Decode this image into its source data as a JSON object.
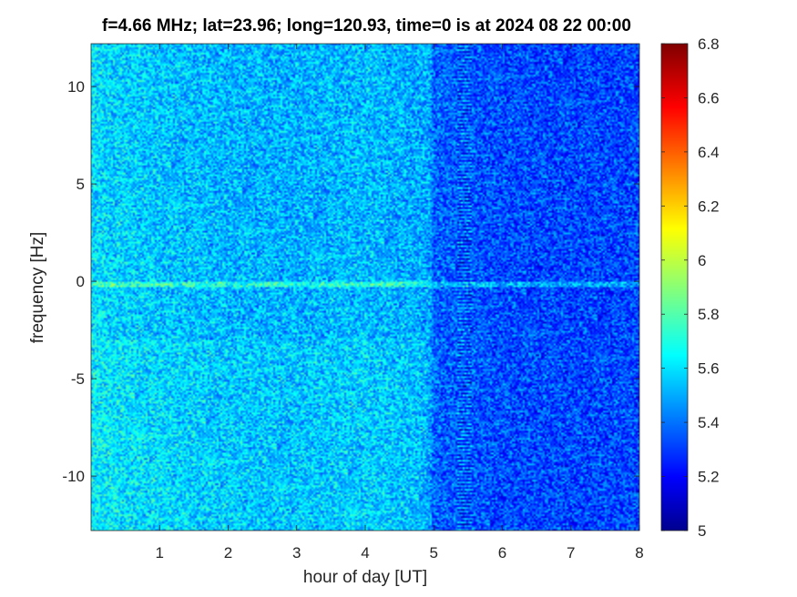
{
  "chart_data": {
    "type": "heatmap",
    "title": "f=4.66 MHz;  lat=23.96; long=120.93, time=0 is at 2024 08 22 00:00",
    "xlabel": "hour of day [UT]",
    "ylabel": "frequency [Hz]",
    "xlim": [
      0,
      8
    ],
    "ylim": [
      -12.8,
      12.2
    ],
    "xticks": [
      1,
      2,
      3,
      4,
      5,
      6,
      7,
      8
    ],
    "xtick_labels": [
      "1",
      "2",
      "3",
      "4",
      "5",
      "6",
      "7",
      "8"
    ],
    "yticks": [
      -10,
      -5,
      0,
      5,
      10
    ],
    "ytick_labels": [
      "-10",
      "-5",
      "0",
      "5",
      "10"
    ],
    "colorbar": {
      "colormap": "jet",
      "clim": [
        5,
        6.8
      ],
      "ticks": [
        5,
        5.2,
        5.4,
        5.6,
        5.8,
        6,
        6.2,
        6.4,
        6.6,
        6.8
      ],
      "tick_labels": [
        "5",
        "5.2",
        "5.4",
        "5.6",
        "5.8",
        "6",
        "6.2",
        "6.4",
        "6.6",
        "6.8"
      ]
    },
    "approx_level": {
      "x_hours": [
        0,
        1,
        2,
        3,
        4,
        4.95,
        5,
        5.5,
        6,
        7,
        8
      ],
      "mean_value": [
        5.62,
        5.58,
        5.55,
        5.54,
        5.56,
        5.52,
        5.4,
        5.38,
        5.36,
        5.35,
        5.35
      ]
    },
    "features": [
      {
        "type": "horizontal line",
        "y": -0.15
      },
      {
        "type": "vertical stripe",
        "x_range": [
          5.35,
          5.55
        ]
      }
    ]
  }
}
